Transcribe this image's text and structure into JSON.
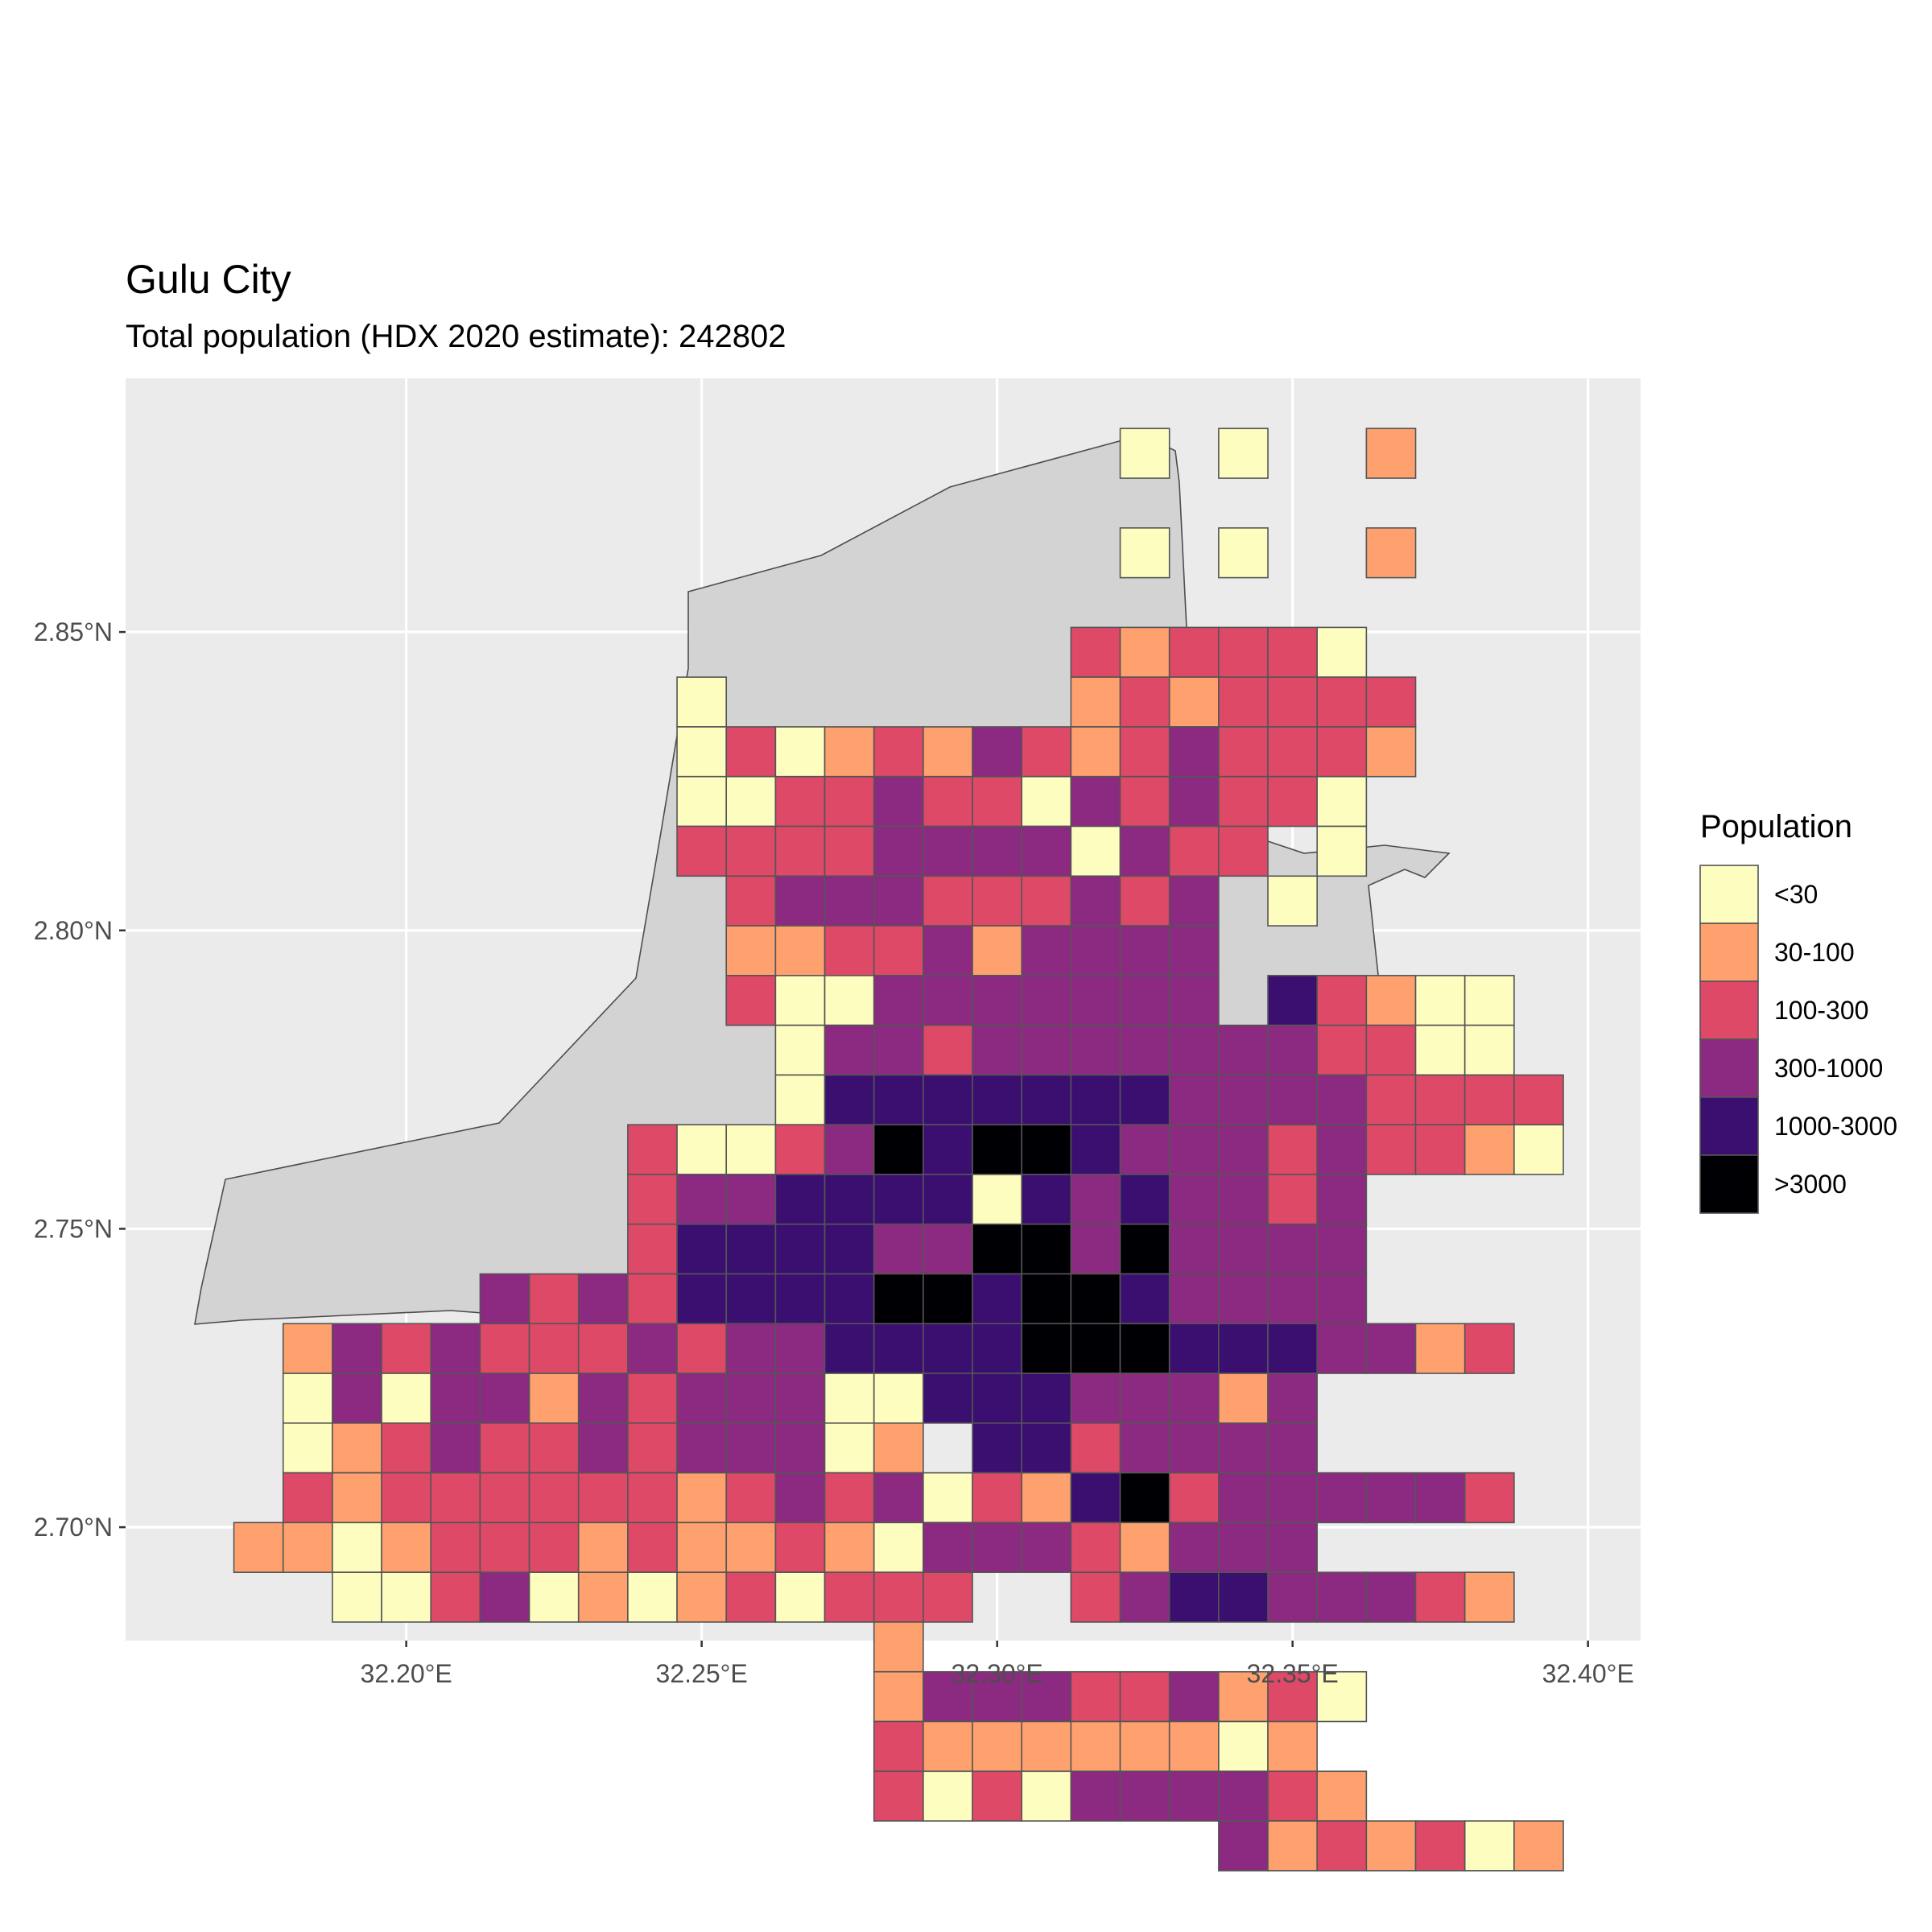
{
  "map": {
    "title": "Gulu City",
    "subtitle": "Total population (HDX 2020 estimate): 242802",
    "x_ticks": [
      {
        "value": 32.2,
        "label": "32.20°E"
      },
      {
        "value": 32.25,
        "label": "32.25°E"
      },
      {
        "value": 32.3,
        "label": "32.30°E"
      },
      {
        "value": 32.35,
        "label": "32.35°E"
      },
      {
        "value": 32.4,
        "label": "32.40°E"
      }
    ],
    "y_ticks": [
      {
        "value": 2.85,
        "label": "2.85°N"
      },
      {
        "value": 2.8,
        "label": "2.80°N"
      },
      {
        "value": 2.75,
        "label": "2.75°N"
      },
      {
        "value": 2.7,
        "label": "2.70°N"
      }
    ],
    "x_range": [
      32.1525,
      32.4089
    ],
    "y_range": [
      2.681,
      2.8925
    ],
    "grid": true
  },
  "legend": {
    "title": "Population",
    "placement": "right",
    "classes": [
      {
        "label": "<30",
        "color": "#fcfdbf"
      },
      {
        "label": "30-100",
        "color": "#fea16e"
      },
      {
        "label": "100-300",
        "color": "#de4968"
      },
      {
        "label": "300-1000",
        "color": "#8c2981"
      },
      {
        "label": "1000-3000",
        "color": "#3b0f70"
      },
      {
        "label": ">3000",
        "color": "#000004"
      }
    ]
  },
  "chart_data": {
    "type": "heatmap",
    "cell_size_degrees": 0.008333,
    "grid_origin": {
      "lon": 32.1625,
      "lat": 2.8841
    },
    "classes": [
      "<30",
      "30-100",
      "100-300",
      "300-1000",
      "1000-3000",
      ">3000"
    ],
    "class_codes": {
      "1": "<30",
      "2": "30-100",
      "3": "100-300",
      "4": "300-1000",
      "5": "1000-3000",
      "6": ">3000"
    },
    "rows": [
      "...................1.1..2.....",
      ".............................",
      "...................1.1..2.....",
      "..............................",
      "..................323331......",
      "..........1.......2323333.....",
      "..........131232432343332.....",
      "..........11334331434331......",
      "..........333344441433.1......",
      "...........3444333434.1.......",
      "...........2233424444.........",
      "...........3114444444.53211...",
      "............144344444443311...",
      "............1555555544443333..",
      ".........3113465665444343321..",
      ".........344555515454434....",
      ".........355554466464444......",
      "......434355556656654444......",
      "..2434333434455556665554423...",
      "..141442434441155544424......",
      "..1234334344412.5534444......",
      "..3233333323434132563444443...",
      ".2212333232232144432444......",
      "...1134121231333..345544432...",
      "..............2.................",
      "..............2444334231......",
      "..............322222212.......",
      "..............3131444432......",
      ".....................4232312..."
    ]
  }
}
